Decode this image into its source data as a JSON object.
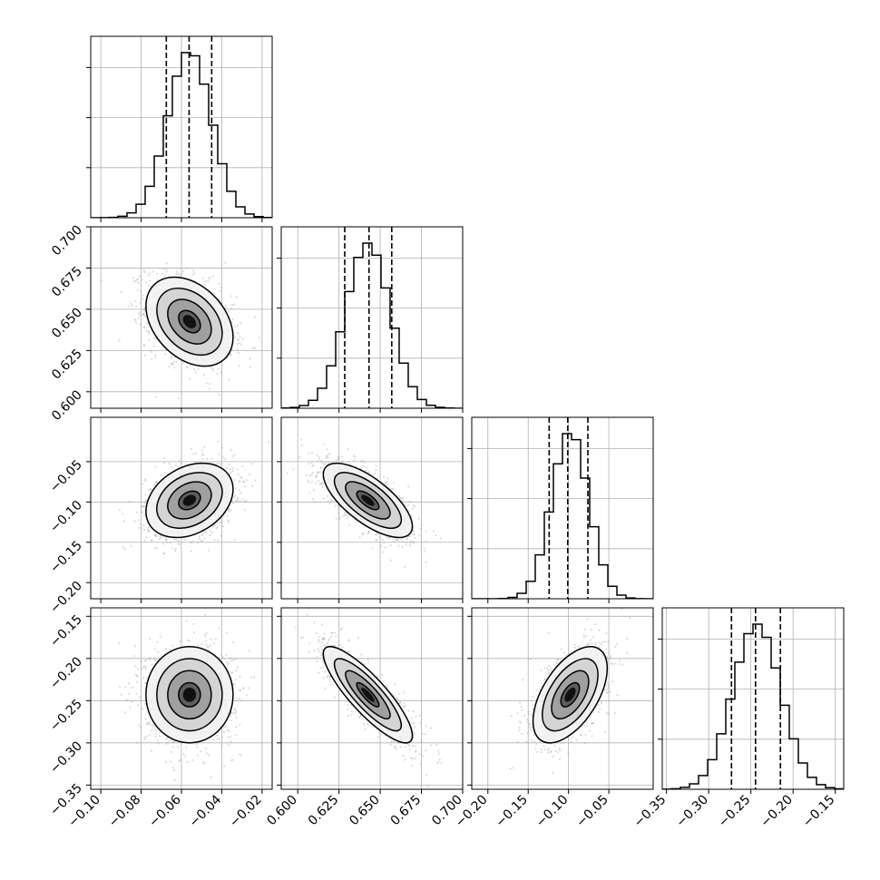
{
  "chart_data": {
    "type": "corner",
    "parameters": [
      {
        "range": [
          -0.105,
          -0.015
        ],
        "ticks": [
          "-0.10",
          "-0.08",
          "-0.06",
          "-0.04",
          "-0.02"
        ],
        "tick_values": [
          -0.1,
          -0.08,
          -0.06,
          -0.04,
          -0.02
        ],
        "mean": -0.056,
        "sd": 0.0108,
        "quantiles": [
          -0.0675,
          -0.0562,
          -0.045
        ]
      },
      {
        "range": [
          0.59,
          0.7
        ],
        "ticks": [
          "0.600",
          "0.625",
          "0.650",
          "0.675",
          "0.700"
        ],
        "tick_values": [
          0.6,
          0.625,
          0.65,
          0.675,
          0.7
        ],
        "mean": 0.6425,
        "sd": 0.0135,
        "quantiles": [
          0.6285,
          0.6432,
          0.657
        ]
      },
      {
        "range": [
          -0.22,
          0.005
        ],
        "ticks": [
          "-0.20",
          "-0.15",
          "-0.10",
          "-0.05"
        ],
        "tick_values": [
          -0.2,
          -0.15,
          -0.1,
          -0.05
        ],
        "mean": -0.098,
        "sd": 0.023,
        "quantiles": [
          -0.124,
          -0.101,
          -0.076
        ]
      },
      {
        "range": [
          -0.355,
          -0.14
        ],
        "ticks": [
          "-0.35",
          "-0.30",
          "-0.25",
          "-0.20",
          "-0.15"
        ],
        "tick_values": [
          -0.35,
          -0.3,
          -0.25,
          -0.2,
          -0.15
        ],
        "mean": -0.243,
        "sd": 0.0285,
        "quantiles": [
          -0.273,
          -0.2445,
          -0.215
        ]
      }
    ],
    "correlations": [
      [
        1.0,
        -0.35,
        0.3,
        0.0
      ],
      [
        -0.35,
        1.0,
        -0.7,
        -0.85
      ],
      [
        0.3,
        -0.7,
        1.0,
        0.55
      ],
      [
        0.0,
        -0.85,
        0.55,
        1.0
      ]
    ],
    "contour_levels": [
      0.5,
      1.0,
      1.5,
      2.0
    ],
    "title": "",
    "grid": true
  }
}
